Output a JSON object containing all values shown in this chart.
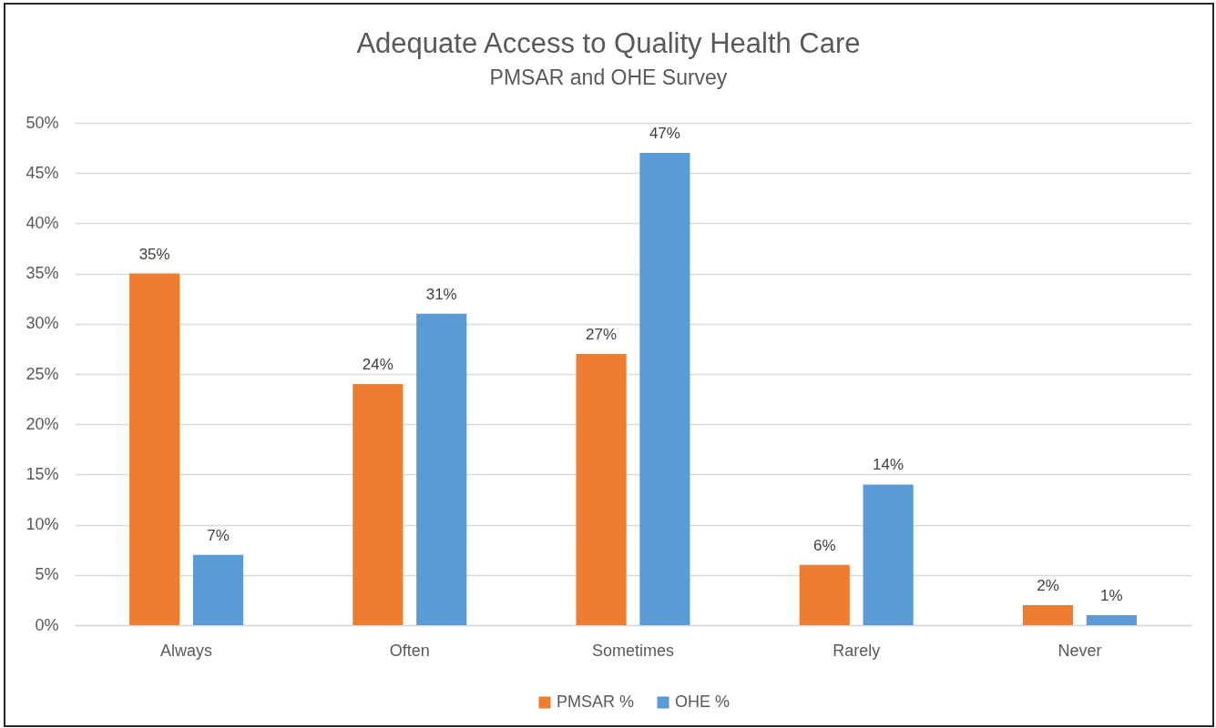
{
  "chart_data": {
    "type": "bar",
    "title": "Adequate Access to Quality Health Care",
    "subtitle": "PMSAR and OHE Survey",
    "categories": [
      "Always",
      "Often",
      "Sometimes",
      "Rarely",
      "Never"
    ],
    "series": [
      {
        "name": "PMSAR %",
        "color": "#ed7d31",
        "values": [
          35,
          24,
          27,
          6,
          2
        ],
        "value_labels": [
          "35%",
          "24%",
          "27%",
          "6%",
          "2%"
        ]
      },
      {
        "name": "OHE %",
        "color": "#5b9bd5",
        "values": [
          7,
          31,
          47,
          14,
          1
        ],
        "value_labels": [
          "7%",
          "31%",
          "47%",
          "14%",
          "1%"
        ]
      }
    ],
    "ylim": [
      0,
      50
    ],
    "yticks": [
      {
        "value": 0,
        "label": "0%"
      },
      {
        "value": 5,
        "label": "5%"
      },
      {
        "value": 10,
        "label": "10%"
      },
      {
        "value": 15,
        "label": "15%"
      },
      {
        "value": 20,
        "label": "20%"
      },
      {
        "value": 25,
        "label": "25%"
      },
      {
        "value": 30,
        "label": "30%"
      },
      {
        "value": 35,
        "label": "35%"
      },
      {
        "value": 40,
        "label": "40%"
      },
      {
        "value": 45,
        "label": "45%"
      },
      {
        "value": 50,
        "label": "50%"
      }
    ],
    "grid": "y",
    "legend": "bottom"
  }
}
